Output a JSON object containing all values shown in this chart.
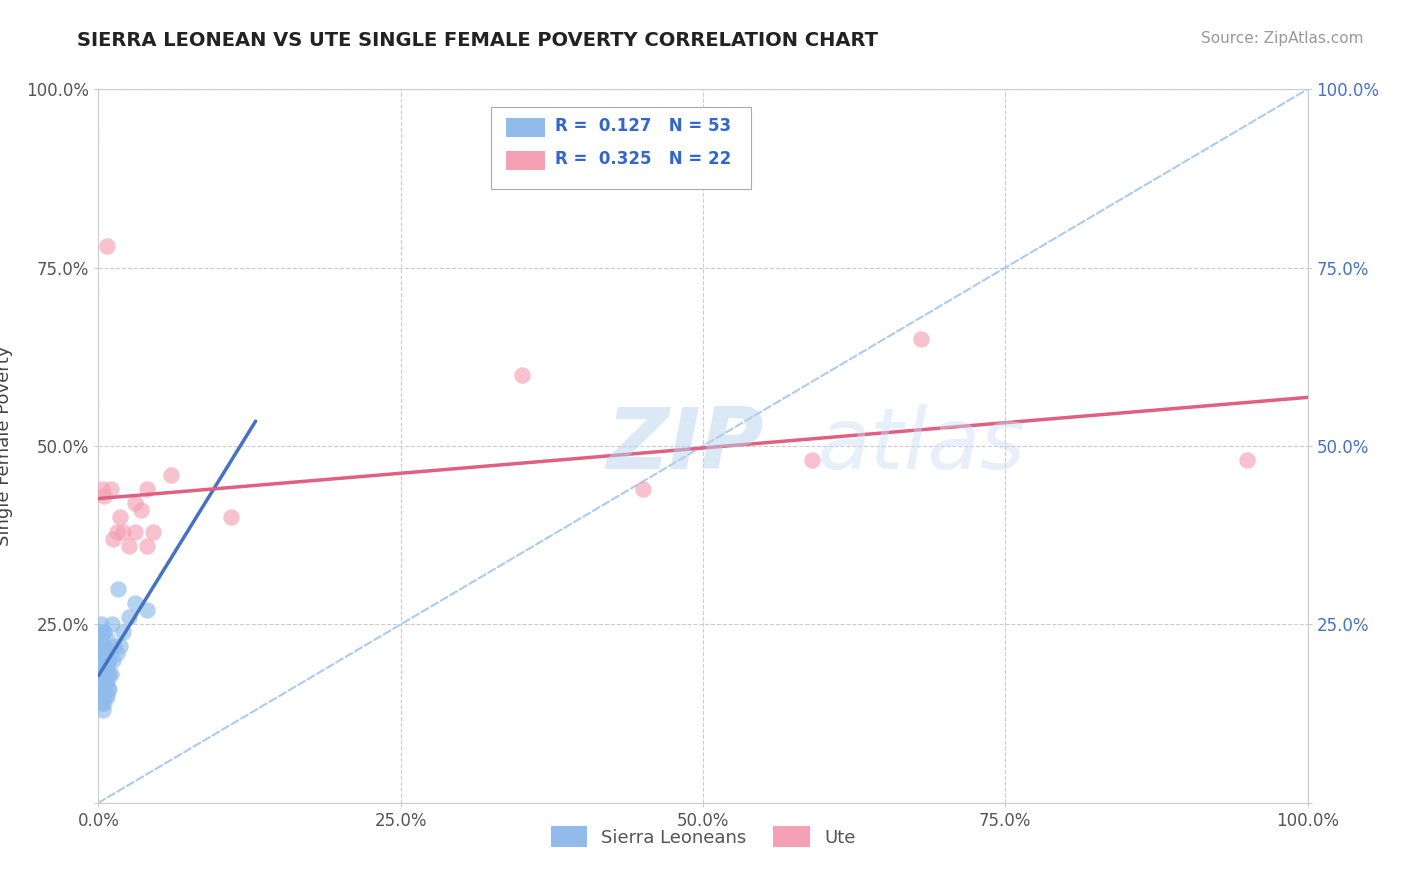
{
  "title": "SIERRA LEONEAN VS UTE SINGLE FEMALE POVERTY CORRELATION CHART",
  "source": "Source: ZipAtlas.com",
  "ylabel": "Single Female Poverty",
  "r_sl": 0.127,
  "n_sl": 53,
  "r_ute": 0.325,
  "n_ute": 22,
  "color_sl": "#90bbea",
  "color_ute": "#f4a0b5",
  "line_color_sl": "#4472C4",
  "line_color_ute": "#e06080",
  "sl_x": [
    0.001,
    0.001,
    0.001,
    0.002,
    0.002,
    0.002,
    0.002,
    0.002,
    0.003,
    0.003,
    0.003,
    0.003,
    0.003,
    0.003,
    0.004,
    0.004,
    0.004,
    0.004,
    0.004,
    0.004,
    0.004,
    0.005,
    0.005,
    0.005,
    0.005,
    0.005,
    0.005,
    0.006,
    0.006,
    0.006,
    0.006,
    0.007,
    0.007,
    0.007,
    0.007,
    0.007,
    0.008,
    0.008,
    0.008,
    0.009,
    0.009,
    0.009,
    0.01,
    0.011,
    0.012,
    0.013,
    0.015,
    0.016,
    0.018,
    0.02,
    0.025,
    0.03,
    0.04
  ],
  "sl_y": [
    0.16,
    0.18,
    0.2,
    0.17,
    0.19,
    0.21,
    0.23,
    0.25,
    0.14,
    0.16,
    0.18,
    0.2,
    0.22,
    0.24,
    0.13,
    0.15,
    0.17,
    0.19,
    0.21,
    0.22,
    0.24,
    0.14,
    0.16,
    0.18,
    0.2,
    0.22,
    0.24,
    0.15,
    0.17,
    0.19,
    0.21,
    0.15,
    0.17,
    0.19,
    0.21,
    0.23,
    0.16,
    0.18,
    0.2,
    0.16,
    0.18,
    0.2,
    0.18,
    0.25,
    0.2,
    0.22,
    0.21,
    0.3,
    0.22,
    0.24,
    0.26,
    0.28,
    0.27
  ],
  "ute_x": [
    0.003,
    0.005,
    0.007,
    0.01,
    0.012,
    0.015,
    0.018,
    0.02,
    0.025,
    0.03,
    0.03,
    0.035,
    0.04,
    0.04,
    0.045,
    0.06,
    0.11,
    0.35,
    0.45,
    0.59,
    0.68,
    0.95
  ],
  "ute_y": [
    0.44,
    0.43,
    0.78,
    0.44,
    0.37,
    0.38,
    0.4,
    0.38,
    0.36,
    0.38,
    0.42,
    0.41,
    0.44,
    0.36,
    0.38,
    0.46,
    0.4,
    0.6,
    0.44,
    0.48,
    0.65,
    0.48
  ],
  "xmin": 0.0,
  "xmax": 1.0,
  "ymin": 0.0,
  "ymax": 1.0,
  "xticks": [
    0.0,
    0.25,
    0.5,
    0.75,
    1.0
  ],
  "yticks": [
    0.0,
    0.25,
    0.5,
    0.75,
    1.0
  ],
  "xtick_labels": [
    "0.0%",
    "25.0%",
    "50.0%",
    "75.0%",
    "100.0%"
  ],
  "left_ytick_labels": [
    "",
    "25.0%",
    "50.0%",
    "75.0%",
    "100.0%"
  ],
  "right_ytick_labels": [
    "",
    "25.0%",
    "50.0%",
    "75.0%",
    "100.0%"
  ],
  "background_color": "#ffffff",
  "grid_color": "#cccccc",
  "title_color": "#222222",
  "source_color": "#999999",
  "label_color": "#555555",
  "right_label_color": "#4472C4"
}
